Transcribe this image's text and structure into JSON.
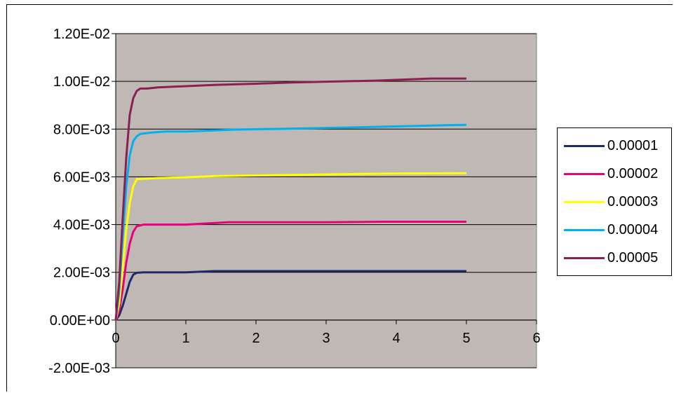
{
  "chart_data": {
    "type": "line",
    "title": "",
    "xlabel": "",
    "ylabel": "",
    "xlim": [
      0,
      6
    ],
    "ylim": [
      -0.002,
      0.012
    ],
    "x_ticks": [
      "0",
      "1",
      "2",
      "3",
      "4",
      "5",
      "6"
    ],
    "y_ticks": [
      "-2.00E-03",
      "0.00E+00",
      "2.00E-03",
      "4.00E-03",
      "6.00E-03",
      "8.00E-03",
      "1.00E-02",
      "1.20E-02"
    ],
    "y_tick_values": [
      -0.002,
      0,
      0.002,
      0.004,
      0.006,
      0.008,
      0.01,
      0.012
    ],
    "grid": "horizontal",
    "plot_background": "#C0B8B4",
    "legend_position": "right",
    "series": [
      {
        "name": "0.00001",
        "color": "#1F2A6B",
        "x": [
          0,
          0.05,
          0.1,
          0.15,
          0.2,
          0.25,
          0.3,
          0.4,
          0.6,
          1.0,
          1.4,
          2,
          3,
          4,
          5
        ],
        "y": [
          0,
          0.0002,
          0.0006,
          0.0011,
          0.0016,
          0.0019,
          0.00198,
          0.002,
          0.002,
          0.002,
          0.00205,
          0.00205,
          0.00205,
          0.00205,
          0.00205
        ]
      },
      {
        "name": "0.00002",
        "color": "#E6007E",
        "x": [
          0,
          0.05,
          0.1,
          0.15,
          0.2,
          0.25,
          0.3,
          0.4,
          0.6,
          1.0,
          1.6,
          2,
          3,
          3.8,
          5
        ],
        "y": [
          0,
          0.0004,
          0.0013,
          0.0024,
          0.0032,
          0.0037,
          0.00393,
          0.004,
          0.004,
          0.004,
          0.0041,
          0.0041,
          0.0041,
          0.00412,
          0.00412
        ]
      },
      {
        "name": "0.00003",
        "color": "#FFFF00",
        "x": [
          0,
          0.05,
          0.1,
          0.15,
          0.2,
          0.25,
          0.3,
          0.4,
          0.6,
          1.0,
          1.4,
          2.5,
          3.9,
          5
        ],
        "y": [
          0,
          0.0007,
          0.0022,
          0.0038,
          0.0049,
          0.0056,
          0.0059,
          0.00592,
          0.00595,
          0.00598,
          0.00603,
          0.00608,
          0.00614,
          0.00615
        ]
      },
      {
        "name": "0.00004",
        "color": "#00B0F0",
        "x": [
          0,
          0.05,
          0.1,
          0.15,
          0.2,
          0.25,
          0.3,
          0.35,
          0.5,
          0.7,
          1.0,
          1.7,
          2.5,
          3.5,
          4.5,
          5
        ],
        "y": [
          0,
          0.0012,
          0.0035,
          0.0056,
          0.0069,
          0.0075,
          0.0077,
          0.0078,
          0.00785,
          0.0079,
          0.0079,
          0.00798,
          0.00802,
          0.00808,
          0.00815,
          0.00818
        ]
      },
      {
        "name": "0.00005",
        "color": "#8B1F52",
        "x": [
          0,
          0.05,
          0.1,
          0.15,
          0.2,
          0.25,
          0.3,
          0.35,
          0.45,
          0.6,
          1.0,
          1.4,
          2.0,
          2.5,
          3.7,
          4.5,
          5
        ],
        "y": [
          0,
          0.0016,
          0.0043,
          0.0068,
          0.0086,
          0.0093,
          0.0096,
          0.0097,
          0.0097,
          0.00975,
          0.0098,
          0.00985,
          0.0099,
          0.00995,
          0.01003,
          0.01012,
          0.01012
        ]
      }
    ]
  }
}
